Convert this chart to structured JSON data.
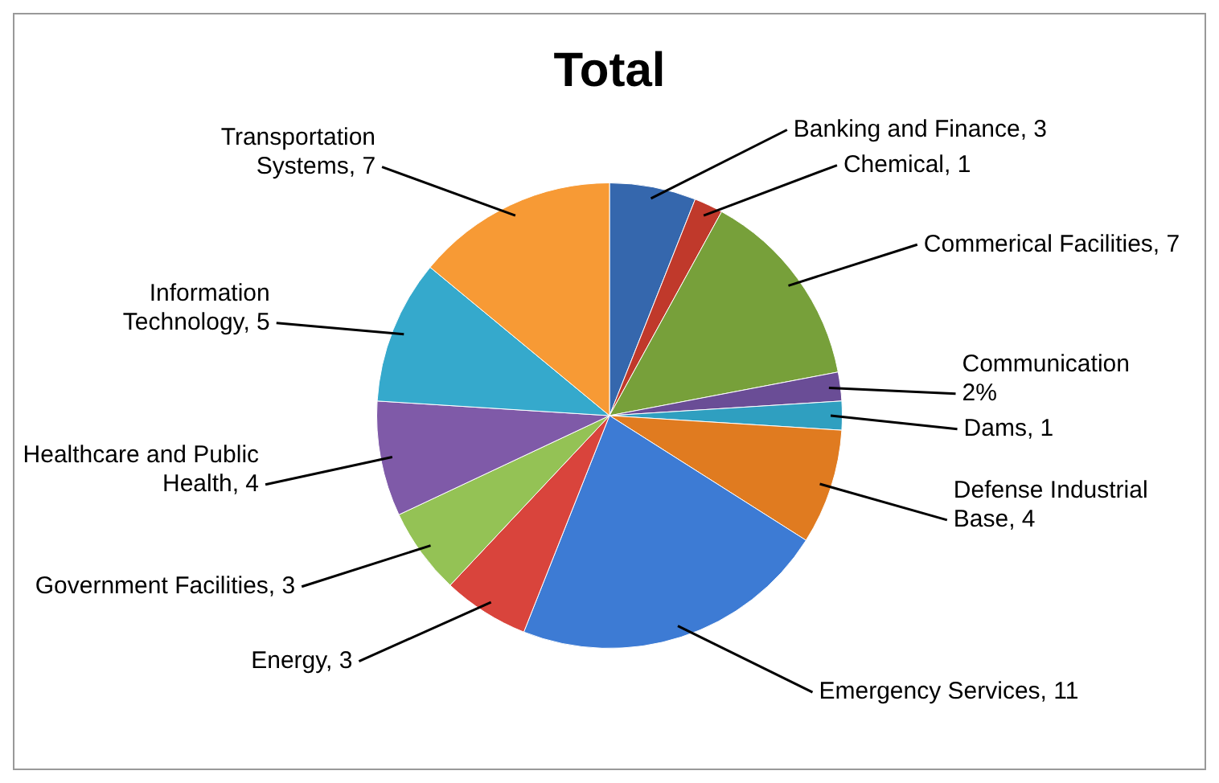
{
  "chart_data": {
    "type": "pie",
    "title": "Total",
    "categories": [
      "Banking and Finance",
      "Chemical",
      "Commerical Facilities",
      "Communication",
      "Dams",
      "Defense Industrial Base",
      "Emergency Services",
      "Energy",
      "Government Facilities",
      "Healthcare and Public Health",
      "Information Technology",
      "Transportation Systems"
    ],
    "values": [
      3,
      1,
      7,
      1,
      1,
      4,
      11,
      3,
      3,
      4,
      5,
      7
    ],
    "value_labels": [
      "3",
      "1",
      "7",
      null,
      "1",
      "4",
      "11",
      "3",
      "3",
      "4",
      "5",
      "7"
    ],
    "annotations": [
      {
        "text": "2%",
        "x": "Communication"
      }
    ],
    "colors": [
      "#3567ad",
      "#c0392b",
      "#77a03a",
      "#6a4d96",
      "#2f9fc0",
      "#e07b20",
      "#3d7bd4",
      "#d9443c",
      "#94c255",
      "#7f5aa8",
      "#35a9cc",
      "#f79a35"
    ],
    "legend": false
  }
}
